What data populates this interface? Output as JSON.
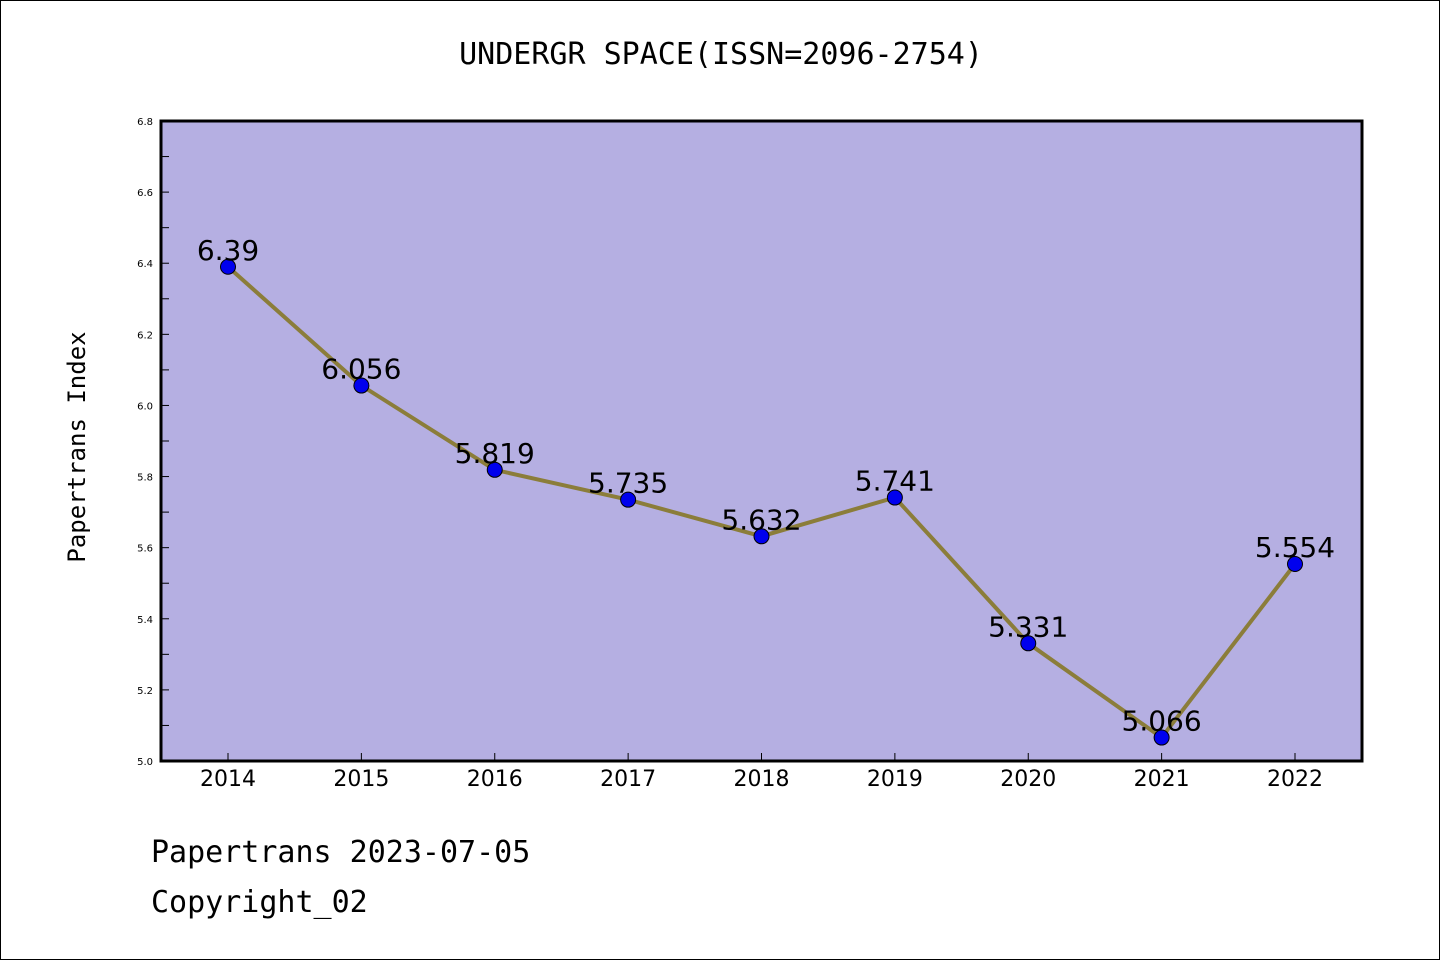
{
  "chart_data": {
    "type": "line",
    "title": "UNDERGR SPACE(ISSN=2096-2754)",
    "ylabel": "Papertrans Index",
    "xlabel": "",
    "categories": [
      "2014",
      "2015",
      "2016",
      "2017",
      "2018",
      "2019",
      "2020",
      "2021",
      "2022"
    ],
    "series": [
      {
        "values": [
          6.39,
          6.056,
          5.819,
          5.735,
          5.632,
          5.741,
          5.331,
          5.066,
          5.554
        ]
      }
    ],
    "data_labels": [
      "6.39",
      "6.056",
      "5.819",
      "5.735",
      "5.632",
      "5.741",
      "5.331",
      "5.066",
      "5.554"
    ],
    "ylim": [
      5.0,
      6.8
    ],
    "yticks": [
      "5.0",
      "5.2",
      "5.4",
      "5.6",
      "5.8",
      "6.0",
      "6.2",
      "6.4",
      "6.6",
      "6.8"
    ],
    "grid": false,
    "colors": {
      "plot_background": "#b5afe2",
      "line": "#8b7d3a",
      "marker": "#0000ee"
    }
  },
  "footer": {
    "line1": "Papertrans 2023-07-05",
    "line2": "Copyright_02"
  }
}
